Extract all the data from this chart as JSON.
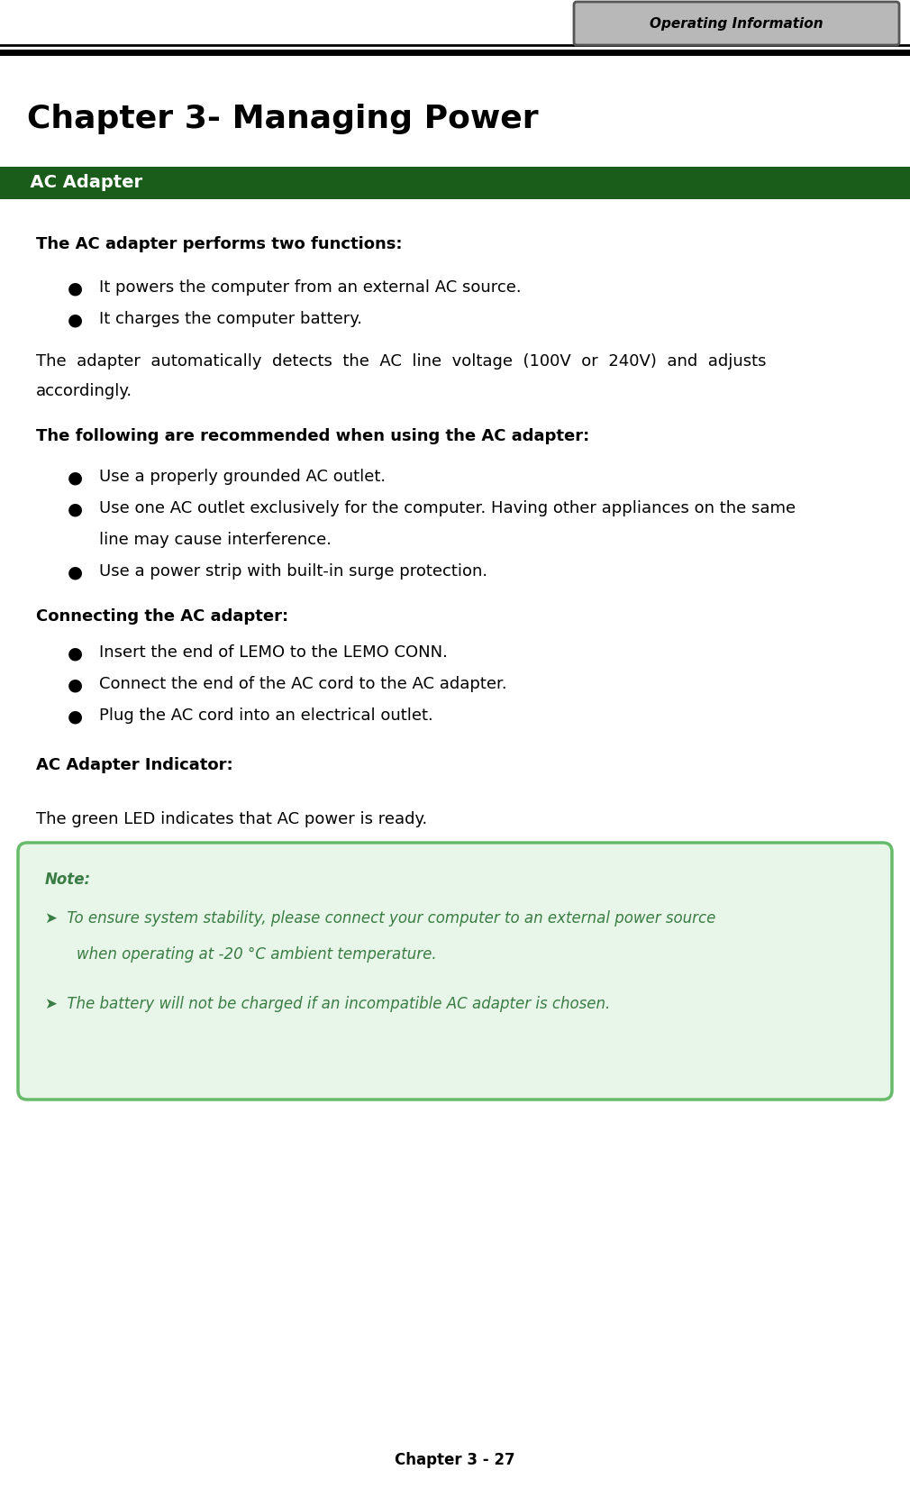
{
  "page_title": "Operating Information",
  "chapter_title": "Chapter 3- Managing Power",
  "section_header": "AC Adapter",
  "section_header_bg": "#1a5c1a",
  "section_header_color": "#ffffff",
  "body_bg": "#ffffff",
  "body_text_color": "#000000",
  "green_text_color": "#3a7d44",
  "note_bg": "#e8f5e9",
  "note_border_color": "#66bb6a",
  "footer_text": "Chapter 3 - 27",
  "header_tab_bg": "#b8b8b8",
  "header_tab_border": "#555555"
}
